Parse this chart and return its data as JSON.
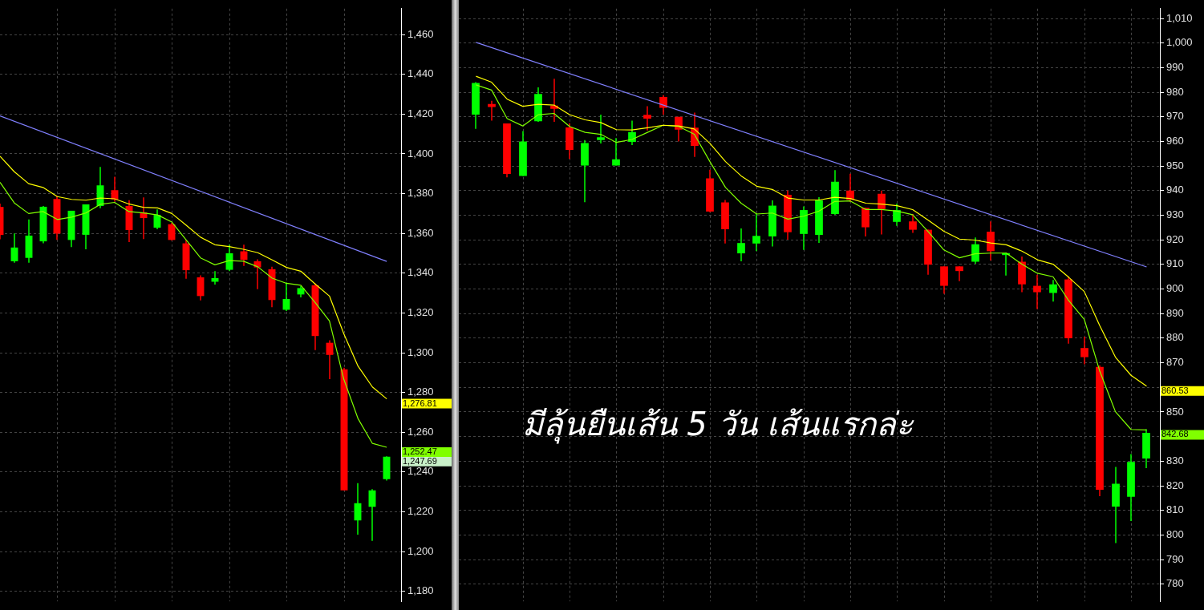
{
  "chart_data": [
    {
      "type": "candlestick",
      "categories": [
        null,
        null,
        null,
        null,
        null,
        null,
        null,
        null,
        null,
        null,
        null,
        null,
        null,
        null,
        null,
        null,
        null,
        null,
        null,
        null,
        null,
        null,
        null,
        null,
        null,
        null,
        null,
        null
      ],
      "ohlc": [
        [
          1373.3,
          1375,
          1357,
          1359.2
        ],
        [
          1346.0,
          1360.0,
          1345.3,
          1352.9
        ],
        [
          1347.7,
          1367.0,
          1345.3,
          1358.9
        ],
        [
          1356.0,
          1373.8,
          1355.0,
          1373.4
        ],
        [
          1377.3,
          1378.8,
          1356.7,
          1359.9
        ],
        [
          1356.7,
          1371.4,
          1353.1,
          1371.4
        ],
        [
          1359.3,
          1374.6,
          1352.0,
          1374.6
        ],
        [
          1373.8,
          1393.4,
          1372.7,
          1384.2
        ],
        [
          1381.7,
          1388.5,
          1376.0,
          1377.1
        ],
        [
          1373.8,
          1376.7,
          1355.6,
          1361.7
        ],
        [
          1370.6,
          1378.1,
          1357.1,
          1367.7
        ],
        [
          1362.9,
          1372.1,
          1362.1,
          1369.3
        ],
        [
          1364.6,
          1365.3,
          1356.4,
          1356.7
        ],
        [
          1355.0,
          1356.7,
          1337.2,
          1341.5
        ],
        [
          1337.9,
          1338.9,
          1326.3,
          1328.5
        ],
        [
          1335.7,
          1341.0,
          1334.3,
          1337.5
        ],
        [
          1341.7,
          1354.3,
          1341.0,
          1350.0
        ],
        [
          1351.0,
          1354.3,
          1343.6,
          1346.7
        ],
        [
          1346.0,
          1347.0,
          1332.0,
          1342.9
        ],
        [
          1342.0,
          1343.2,
          1322.9,
          1326.5
        ],
        [
          1321.6,
          1335.3,
          1321.0,
          1327.0
        ],
        [
          1329.3,
          1333.5,
          1327.8,
          1332.5
        ],
        [
          1333.9,
          1334.9,
          1301.3,
          1308.4
        ],
        [
          1305.0,
          1306.3,
          1286.7,
          1298.9
        ],
        [
          1291.7,
          1292.5,
          1230.8,
          1230.8
        ],
        [
          1215.7,
          1234.4,
          1208.5,
          1224.4
        ],
        [
          1222.5,
          1231.4,
          1205.4,
          1230.8
        ],
        [
          1236.4,
          1247.9,
          1235.7,
          1247.69
        ]
      ],
      "series": [
        {
          "type": "line",
          "color": "#ffff00",
          "values": [
            1398.8,
            1391.0,
            1385.0,
            1383.1,
            1378.5,
            1377.1,
            1376.7,
            1377.8,
            1377.4,
            1374.8,
            1373.1,
            1372.8,
            1370.0,
            1364.1,
            1358.1,
            1354.3,
            1353.4,
            1352.0,
            1350.3,
            1346.7,
            1342.9,
            1341.0,
            1334.6,
            1328.5,
            1309.6,
            1293.2,
            1282.8,
            1276.81
          ],
          "value_labels": [
            null,
            null,
            null,
            null,
            null,
            null,
            null,
            null,
            null,
            null,
            null,
            null,
            null,
            null,
            null,
            null,
            null,
            null,
            null,
            null,
            null,
            null,
            null,
            null,
            null,
            null,
            null,
            "1,276.81"
          ]
        },
        {
          "type": "line",
          "color": "#80ff00",
          "values": [
            1385.7,
            1375.3,
            1370.0,
            1371.0,
            1367.0,
            1368.2,
            1370.3,
            1374.6,
            1375.6,
            1371.0,
            1370.3,
            1369.3,
            1365.7,
            1356.7,
            1347.7,
            1344.2,
            1346.3,
            1346.0,
            1343.2,
            1337.5,
            1334.9,
            1333.9,
            1325.3,
            1316.0,
            1286.7,
            1266.8,
            1254.4,
            1252.47
          ],
          "value_labels": [
            null,
            null,
            null,
            null,
            null,
            null,
            null,
            null,
            null,
            null,
            null,
            null,
            null,
            null,
            null,
            null,
            null,
            null,
            null,
            null,
            null,
            null,
            null,
            null,
            null,
            null,
            null,
            "1,252.47"
          ]
        },
        {
          "type": "line",
          "color": "#8080ff",
          "values": [
            1419.1,
            null,
            null,
            null,
            null,
            null,
            null,
            null,
            null,
            null,
            null,
            null,
            null,
            null,
            null,
            null,
            null,
            null,
            null,
            null,
            null,
            null,
            null,
            null,
            null,
            null,
            null,
            1345.9
          ]
        }
      ],
      "annotations": [
        "1,247.69"
      ],
      "ylim": [
        1175,
        1473
      ],
      "yticks": [
        {
          "value": 1180,
          "label": "1,180"
        },
        {
          "value": 1200,
          "label": "1,200"
        },
        {
          "value": 1220,
          "label": "1,220"
        },
        {
          "value": 1240,
          "label": "1,240"
        },
        {
          "value": 1260,
          "label": "1,260"
        },
        {
          "value": 1280,
          "label": "1,280"
        },
        {
          "value": 1300,
          "label": "1,300"
        },
        {
          "value": 1320,
          "label": "1,320"
        },
        {
          "value": 1340,
          "label": "1,340"
        },
        {
          "value": 1360,
          "label": "1,360"
        },
        {
          "value": 1380,
          "label": "1,380"
        },
        {
          "value": 1400,
          "label": "1,400"
        },
        {
          "value": 1420,
          "label": "1,420"
        },
        {
          "value": 1440,
          "label": "1,440"
        },
        {
          "value": 1460,
          "label": "1,460"
        }
      ],
      "grid": true,
      "tick_labels": "y"
    },
    {
      "type": "candlestick",
      "categories": [
        null,
        null,
        null,
        null,
        null,
        null,
        null,
        null,
        null,
        null,
        null,
        null,
        null,
        null,
        null,
        null,
        null,
        null,
        null,
        null,
        null,
        null,
        null,
        null,
        null,
        null,
        null,
        null,
        null,
        null,
        null,
        null,
        null,
        null,
        null,
        null,
        null,
        null,
        null,
        null,
        null,
        null,
        null,
        null
      ],
      "ohlc": [
        [
          970.9,
          984.1,
          965.1,
          983.8
        ],
        [
          975.2,
          976.5,
          968.5,
          974.0
        ],
        [
          967.3,
          967.3,
          945.4,
          946.8
        ],
        [
          946.0,
          964.2,
          946.0,
          960.0
        ],
        [
          968.2,
          982.0,
          968.0,
          979.3
        ],
        [
          974.6,
          985.5,
          968.0,
          973.3
        ],
        [
          965.7,
          967.4,
          952.9,
          956.6
        ],
        [
          950.2,
          960.6,
          935.3,
          959.3
        ],
        [
          960.6,
          970.9,
          959.2,
          961.7
        ],
        [
          950.2,
          961.4,
          950.2,
          952.7
        ],
        [
          959.8,
          968.5,
          958.5,
          963.8
        ],
        [
          970.8,
          974.3,
          964.5,
          969.3
        ],
        [
          978.1,
          978.8,
          970.9,
          973.7
        ],
        [
          970.0,
          970.0,
          960.0,
          964.8
        ],
        [
          965.6,
          971.7,
          953.7,
          958.2
        ],
        [
          945.0,
          948.5,
          931.2,
          931.5
        ],
        [
          935.2,
          936.2,
          918.5,
          924.3
        ],
        [
          914.5,
          924.6,
          911.3,
          918.7
        ],
        [
          918.5,
          930.7,
          915.4,
          921.6
        ],
        [
          921.4,
          936.0,
          917.3,
          933.9
        ],
        [
          938.3,
          940.0,
          920.1,
          923.1
        ],
        [
          922.4,
          933.6,
          915.9,
          932.1
        ],
        [
          922.0,
          937.3,
          918.8,
          936.0
        ],
        [
          930.5,
          948.3,
          930.2,
          943.6
        ],
        [
          940.0,
          946.9,
          935.4,
          936.3
        ],
        [
          933.0,
          933.0,
          921.4,
          925.1
        ],
        [
          938.7,
          940.0,
          922.2,
          932.5
        ],
        [
          927.3,
          934.7,
          925.7,
          932.1
        ],
        [
          927.5,
          930.5,
          922.8,
          924.1
        ],
        [
          924.1,
          924.1,
          905.8,
          909.9
        ],
        [
          909.2,
          909.2,
          898.1,
          901.3
        ],
        [
          909.2,
          909.2,
          903.2,
          907.3
        ],
        [
          911.1,
          921.0,
          910.3,
          918.2
        ],
        [
          923.3,
          927.5,
          911.6,
          915.4
        ],
        [
          913.8,
          914.8,
          905.5,
          914.6
        ],
        [
          911.1,
          913.2,
          898.7,
          901.9
        ],
        [
          901.3,
          905.8,
          891.9,
          898.7
        ],
        [
          898.4,
          903.7,
          894.9,
          901.9
        ],
        [
          903.9,
          905.1,
          877.8,
          880.0
        ],
        [
          876.0,
          880.6,
          869.4,
          872.3
        ],
        [
          868.3,
          869.0,
          815.8,
          818.4
        ],
        [
          811.5,
          827.7,
          796.7,
          820.8
        ],
        [
          815.5,
          832.9,
          805.7,
          829.7
        ],
        [
          831.1,
          843.0,
          827.2,
          841.5
        ]
      ],
      "series": [
        {
          "type": "line",
          "color": "#ffff00",
          "values": [
            986.5,
            984.1,
            977.2,
            974.3,
            975.1,
            974.8,
            970.9,
            968.8,
            967.7,
            964.8,
            964.7,
            965.6,
            966.6,
            966.3,
            965.1,
            959.2,
            951.8,
            946.0,
            941.8,
            940.5,
            937.0,
            936.2,
            936.2,
            937.3,
            936.8,
            934.9,
            934.5,
            933.9,
            932.3,
            928.0,
            923.5,
            920.3,
            919.9,
            918.7,
            918.0,
            915.4,
            911.9,
            910.1,
            904.8,
            899.0,
            885.0,
            872.3,
            864.9,
            860.53
          ],
          "value_labels": [
            null,
            null,
            null,
            null,
            null,
            null,
            null,
            null,
            null,
            null,
            null,
            null,
            null,
            null,
            null,
            null,
            null,
            null,
            null,
            null,
            null,
            null,
            null,
            null,
            null,
            null,
            null,
            null,
            null,
            null,
            null,
            null,
            null,
            null,
            null,
            null,
            null,
            null,
            null,
            null,
            null,
            null,
            null,
            "860.53"
          ]
        },
        {
          "type": "line",
          "color": "#80ff00",
          "values": [
            983.0,
            980.9,
            969.3,
            966.3,
            970.9,
            971.4,
            966.1,
            963.7,
            962.9,
            959.6,
            960.8,
            963.7,
            966.6,
            966.1,
            962.9,
            951.8,
            941.3,
            934.9,
            930.5,
            930.9,
            928.4,
            929.6,
            931.7,
            935.6,
            935.8,
            932.3,
            932.3,
            931.7,
            930.2,
            923.3,
            915.9,
            912.7,
            914.3,
            914.6,
            914.6,
            910.1,
            906.4,
            905.0,
            895.3,
            887.7,
            866.5,
            850.1,
            842.9,
            842.68
          ],
          "value_labels": [
            null,
            null,
            null,
            null,
            null,
            null,
            null,
            null,
            null,
            null,
            null,
            null,
            null,
            null,
            null,
            null,
            null,
            null,
            null,
            null,
            null,
            null,
            null,
            null,
            null,
            null,
            null,
            null,
            null,
            null,
            null,
            null,
            null,
            null,
            null,
            null,
            null,
            null,
            null,
            null,
            null,
            null,
            null,
            "842.68"
          ]
        },
        {
          "type": "line",
          "color": "#8080ff",
          "values": [
            1000.3,
            null,
            null,
            null,
            null,
            null,
            null,
            null,
            null,
            null,
            null,
            null,
            null,
            null,
            null,
            null,
            null,
            null,
            null,
            null,
            null,
            null,
            null,
            null,
            null,
            null,
            null,
            null,
            null,
            null,
            null,
            null,
            null,
            null,
            null,
            null,
            null,
            null,
            null,
            null,
            null,
            null,
            null,
            909.0
          ]
        }
      ],
      "annotations": [
        "มีลุ้นยืนเส้น 5 วัน เส้นแรกล่ะ"
      ],
      "ylim": [
        773,
        1014
      ],
      "yticks": [
        {
          "value": 780,
          "label": "780"
        },
        {
          "value": 790,
          "label": "790"
        },
        {
          "value": 800,
          "label": "800"
        },
        {
          "value": 810,
          "label": "810"
        },
        {
          "value": 820,
          "label": "820"
        },
        {
          "value": 830,
          "label": "830"
        },
        {
          "value": 840,
          "label": null
        },
        {
          "value": 850,
          "label": "850"
        },
        {
          "value": 860,
          "label": null
        },
        {
          "value": 870,
          "label": "870"
        },
        {
          "value": 880,
          "label": "880"
        },
        {
          "value": 890,
          "label": "890"
        },
        {
          "value": 900,
          "label": "900"
        },
        {
          "value": 910,
          "label": "910"
        },
        {
          "value": 920,
          "label": "920"
        },
        {
          "value": 930,
          "label": "930"
        },
        {
          "value": 940,
          "label": "940"
        },
        {
          "value": 950,
          "label": "950"
        },
        {
          "value": 960,
          "label": "960"
        },
        {
          "value": 970,
          "label": "970"
        },
        {
          "value": 980,
          "label": "980"
        },
        {
          "value": 990,
          "label": "990"
        },
        {
          "value": 1000,
          "label": "1,000"
        },
        {
          "value": 1010,
          "label": "1,010"
        }
      ],
      "grid": true,
      "tick_labels": "y"
    }
  ]
}
